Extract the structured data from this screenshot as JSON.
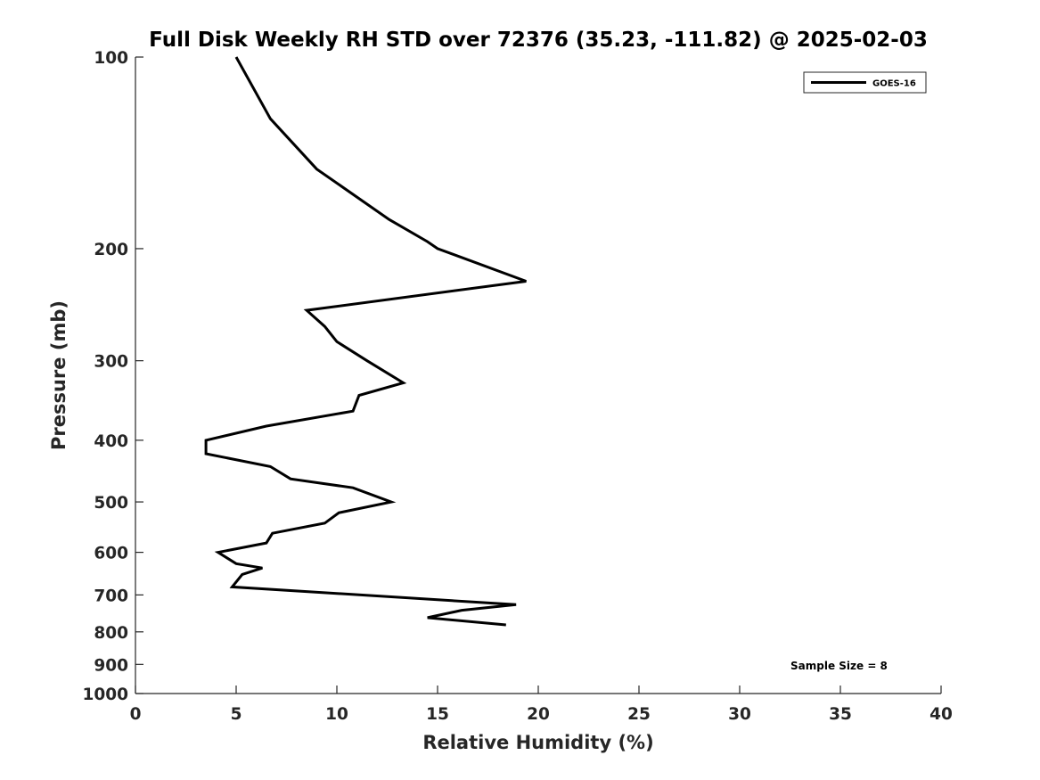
{
  "chart_data": {
    "type": "line",
    "title": "Full Disk Weekly RH STD over 72376 (35.23, -111.82) @ 2025-02-03",
    "xlabel": "Relative Humidity (%)",
    "ylabel": "Pressure (mb)",
    "xlim": [
      0,
      40
    ],
    "ylim": [
      100,
      1000
    ],
    "yscale": "log",
    "yreversed": true,
    "x_ticks": [
      0,
      5,
      10,
      15,
      20,
      25,
      30,
      35,
      40
    ],
    "y_ticks": [
      100,
      200,
      300,
      400,
      500,
      600,
      700,
      800,
      900,
      1000
    ],
    "grid": false,
    "legend_position": "top-right",
    "series": [
      {
        "name": "GOES-16",
        "color": "#000000",
        "points": [
          [
            5.0,
            100
          ],
          [
            6.7,
            125
          ],
          [
            9.0,
            150
          ],
          [
            12.6,
            180
          ],
          [
            14.5,
            195
          ],
          [
            15.0,
            200
          ],
          [
            19.4,
            225
          ],
          [
            8.5,
            250
          ],
          [
            9.4,
            265
          ],
          [
            10.0,
            280
          ],
          [
            11.5,
            300
          ],
          [
            13.3,
            325
          ],
          [
            11.1,
            340
          ],
          [
            10.8,
            360
          ],
          [
            6.5,
            380
          ],
          [
            3.5,
            400
          ],
          [
            3.5,
            420
          ],
          [
            6.7,
            440
          ],
          [
            7.7,
            460
          ],
          [
            10.8,
            475
          ],
          [
            12.7,
            500
          ],
          [
            10.1,
            520
          ],
          [
            9.4,
            540
          ],
          [
            6.8,
            560
          ],
          [
            6.5,
            580
          ],
          [
            4.1,
            600
          ],
          [
            5.0,
            625
          ],
          [
            6.3,
            635
          ],
          [
            5.3,
            650
          ],
          [
            4.8,
            680
          ],
          [
            18.9,
            725
          ],
          [
            16.2,
            740
          ],
          [
            14.5,
            760
          ],
          [
            18.4,
            780
          ]
        ]
      }
    ],
    "annotation": "Sample Size = 8"
  }
}
